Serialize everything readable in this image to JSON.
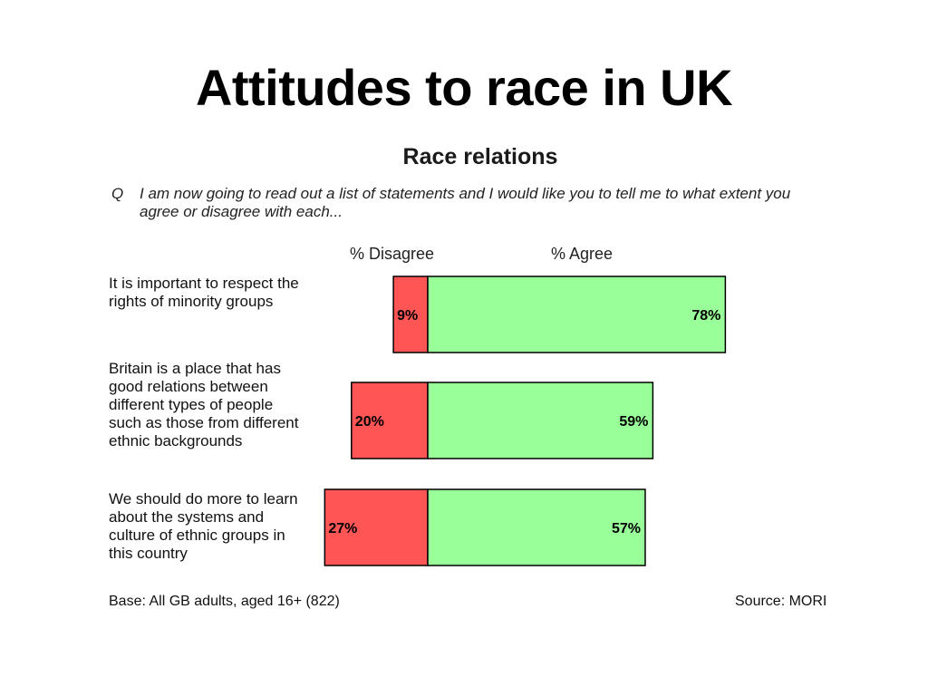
{
  "slide": {
    "title": "Attitudes to race in UK"
  },
  "chart": {
    "title": "Race relations",
    "question_marker": "Q",
    "question": "I am now going to read out a list of statements and I would like you to tell me to what extent you agree or disagree with each...",
    "base": "Base: All GB adults, aged 16+ (822)",
    "source": "Source: MORI"
  },
  "chart_data": {
    "type": "bar",
    "orientation": "horizontal",
    "stacked": "diverging",
    "title": "Race relations",
    "categories": [
      "It is important to respect the rights of minority groups",
      "Britain is a place that has good relations between different types of people such as those from different ethnic backgrounds",
      "We should do more to learn about the systems and culture of ethnic groups in this country"
    ],
    "series": [
      {
        "name": "% Disagree",
        "color": "#ff5555",
        "values": [
          9,
          20,
          27
        ],
        "labels": [
          "9%",
          "20%",
          "27%"
        ]
      },
      {
        "name": "% Agree",
        "color": "#99ff99",
        "values": [
          78,
          59,
          57
        ],
        "labels": [
          "78%",
          "59%",
          "57%"
        ]
      }
    ],
    "grid": false,
    "legend": "top"
  }
}
